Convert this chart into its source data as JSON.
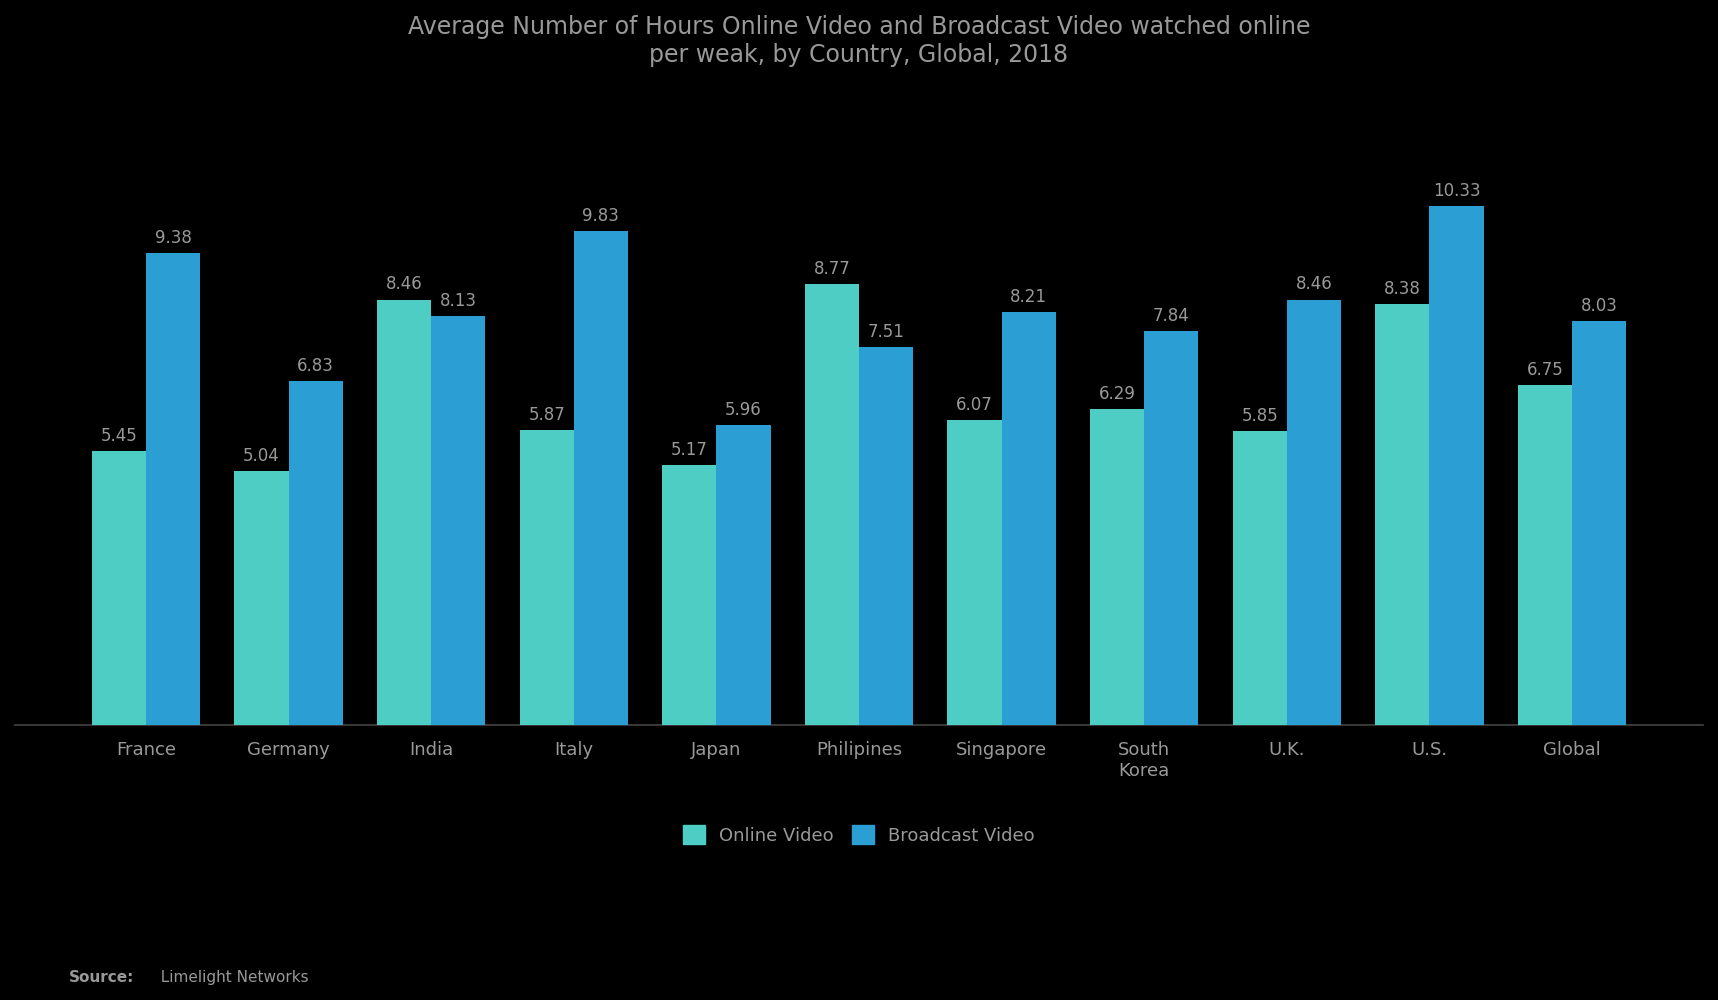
{
  "title": "Average Number of Hours Online Video and Broadcast Video watched online\nper weak, by Country, Global, 2018",
  "categories": [
    "France",
    "Germany",
    "India",
    "Italy",
    "Japan",
    "Philipines",
    "Singapore",
    "South\nKorea",
    "U.K.",
    "U.S.",
    "Global"
  ],
  "online_video": [
    5.45,
    5.04,
    8.46,
    5.87,
    5.17,
    8.77,
    6.07,
    6.29,
    5.85,
    8.38,
    6.75
  ],
  "broadcast_video": [
    9.38,
    6.83,
    8.13,
    9.83,
    5.96,
    7.51,
    8.21,
    7.84,
    8.46,
    10.33,
    8.03
  ],
  "online_video_color": "#4ecdc4",
  "broadcast_video_color": "#2b9fd4",
  "background_color": "#000000",
  "text_color": "#999999",
  "bar_width": 0.38,
  "ylim": [
    0,
    12.5
  ],
  "source_bold": "Source:",
  "source_normal": "  Limelight Networks",
  "legend_labels": [
    "Online Video",
    "Broadcast Video"
  ],
  "title_fontsize": 17,
  "label_fontsize": 12,
  "tick_fontsize": 13,
  "source_fontsize": 11
}
